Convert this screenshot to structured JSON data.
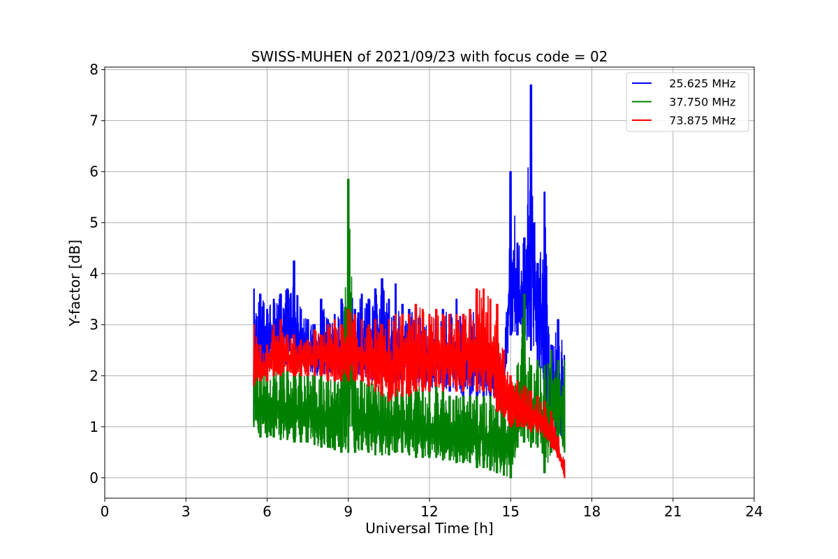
{
  "chart_data": {
    "type": "line",
    "title": "SWISS-MUHEN of 2021/09/23 with focus code = 02",
    "xlabel": "Universal Time [h]",
    "ylabel": "Y-factor [dB]",
    "xlim": [
      0,
      24
    ],
    "ylim": [
      -0.4,
      8.05
    ],
    "xticks": [
      0,
      3,
      6,
      9,
      12,
      15,
      18,
      21,
      24
    ],
    "yticks": [
      0,
      1,
      2,
      3,
      4,
      5,
      6,
      7,
      8
    ],
    "grid": true,
    "legend_position": "top-right",
    "series": [
      {
        "name": "   25.625 MHz",
        "color": "#0000ff",
        "x": [
          5.5,
          5.75,
          6.0,
          6.25,
          6.5,
          6.75,
          7.0,
          7.25,
          7.5,
          7.75,
          8.0,
          8.25,
          8.5,
          8.75,
          9.0,
          9.25,
          9.5,
          9.75,
          10.0,
          10.25,
          10.5,
          10.75,
          11.0,
          11.25,
          11.5,
          11.75,
          12.0,
          12.25,
          12.5,
          12.75,
          13.0,
          13.25,
          13.5,
          13.75,
          14.0,
          14.25,
          14.5,
          14.75,
          15.0,
          15.25,
          15.5,
          15.75,
          16.0,
          16.25,
          16.5,
          16.75,
          17.0
        ],
        "low": [
          1.1,
          2.1,
          2.2,
          2.3,
          2.3,
          2.2,
          2.2,
          2.2,
          2.1,
          2.0,
          2.0,
          2.0,
          1.9,
          1.9,
          2.0,
          2.0,
          2.0,
          1.9,
          1.9,
          1.9,
          1.8,
          1.8,
          1.8,
          1.8,
          1.8,
          1.7,
          1.7,
          1.7,
          1.7,
          1.7,
          1.7,
          1.6,
          1.6,
          1.6,
          1.6,
          1.6,
          1.5,
          1.5,
          2.8,
          2.8,
          2.5,
          2.5,
          2.2,
          1.2,
          0.6,
          0.8,
          0.6
        ],
        "high": [
          3.7,
          3.6,
          3.3,
          3.5,
          3.6,
          3.7,
          4.25,
          3.3,
          3.1,
          3.0,
          3.5,
          3.1,
          3.2,
          3.5,
          3.9,
          3.3,
          3.6,
          3.5,
          3.7,
          3.9,
          3.5,
          3.8,
          3.4,
          3.3,
          3.3,
          3.1,
          3.2,
          3.1,
          3.3,
          3.2,
          3.5,
          3.2,
          3.2,
          3.5,
          3.3,
          3.0,
          2.5,
          2.4,
          6.0,
          4.6,
          4.7,
          7.7,
          4.2,
          5.6,
          2.6,
          3.1,
          2.4
        ]
      },
      {
        "name": "   37.750 MHz",
        "color": "#008000",
        "x": [
          5.5,
          5.75,
          6.0,
          6.25,
          6.5,
          6.75,
          7.0,
          7.25,
          7.5,
          7.75,
          8.0,
          8.25,
          8.5,
          8.75,
          9.0,
          9.25,
          9.5,
          9.75,
          10.0,
          10.25,
          10.5,
          10.75,
          11.0,
          11.25,
          11.5,
          11.75,
          12.0,
          12.25,
          12.5,
          12.75,
          13.0,
          13.25,
          13.5,
          13.75,
          14.0,
          14.25,
          14.5,
          14.75,
          15.0,
          15.25,
          15.5,
          15.75,
          16.0,
          16.25,
          16.5,
          16.75,
          17.0
        ],
        "low": [
          1.0,
          0.8,
          0.8,
          0.8,
          0.75,
          0.75,
          0.7,
          0.7,
          0.7,
          0.65,
          0.6,
          0.6,
          0.55,
          0.5,
          0.5,
          0.5,
          0.55,
          0.5,
          0.45,
          0.45,
          0.45,
          0.5,
          0.5,
          0.45,
          0.4,
          0.4,
          0.4,
          0.4,
          0.35,
          0.35,
          0.3,
          0.3,
          0.3,
          0.2,
          0.2,
          0.15,
          0.1,
          0.05,
          0.0,
          0.6,
          0.7,
          0.6,
          0.6,
          0.1,
          0.5,
          0.6,
          0.5
        ],
        "high": [
          2.6,
          2.3,
          2.2,
          2.2,
          2.3,
          2.1,
          2.2,
          2.1,
          2.1,
          2.0,
          2.0,
          2.0,
          2.0,
          2.1,
          5.85,
          2.0,
          2.0,
          1.9,
          1.9,
          1.8,
          1.8,
          1.8,
          1.8,
          1.8,
          2.0,
          1.7,
          1.7,
          1.8,
          1.7,
          1.6,
          1.6,
          1.6,
          1.6,
          1.6,
          1.6,
          1.6,
          1.5,
          1.5,
          1.6,
          2.2,
          3.6,
          2.2,
          2.3,
          2.2,
          2.5,
          2.3,
          2.3
        ]
      },
      {
        "name": "   73.875 MHz",
        "color": "#ff0000",
        "x": [
          5.5,
          5.75,
          6.0,
          6.25,
          6.5,
          6.75,
          7.0,
          7.25,
          7.5,
          7.75,
          8.0,
          8.25,
          8.5,
          8.75,
          9.0,
          9.25,
          9.5,
          9.75,
          10.0,
          10.25,
          10.5,
          10.75,
          11.0,
          11.25,
          11.5,
          11.75,
          12.0,
          12.25,
          12.5,
          12.75,
          13.0,
          13.25,
          13.5,
          13.75,
          14.0,
          14.25,
          14.5,
          14.75,
          15.0,
          15.25,
          15.5,
          15.75,
          16.0,
          16.25,
          16.5,
          16.75,
          17.0
        ],
        "low": [
          1.8,
          1.9,
          1.9,
          2.0,
          2.0,
          2.1,
          2.0,
          2.0,
          2.0,
          2.0,
          2.0,
          1.9,
          1.9,
          1.9,
          1.9,
          1.9,
          1.9,
          1.8,
          1.7,
          1.6,
          1.5,
          1.6,
          1.6,
          1.6,
          1.7,
          1.7,
          1.7,
          1.8,
          1.7,
          1.8,
          1.7,
          1.7,
          1.8,
          1.7,
          1.7,
          1.7,
          1.3,
          1.2,
          1.0,
          1.0,
          1.0,
          0.9,
          0.9,
          0.8,
          0.6,
          0.4,
          0.0
        ],
        "high": [
          3.0,
          2.6,
          2.6,
          3.0,
          3.1,
          2.8,
          2.8,
          2.7,
          2.7,
          2.9,
          2.8,
          3.0,
          3.1,
          3.0,
          3.3,
          3.2,
          3.1,
          3.0,
          3.1,
          3.0,
          3.1,
          3.2,
          3.2,
          3.2,
          3.4,
          3.3,
          3.2,
          3.3,
          3.2,
          3.2,
          3.2,
          3.2,
          3.3,
          3.7,
          3.7,
          3.5,
          3.4,
          2.5,
          2.0,
          1.9,
          1.8,
          1.7,
          1.6,
          1.5,
          1.3,
          0.8,
          0.35
        ]
      }
    ]
  }
}
